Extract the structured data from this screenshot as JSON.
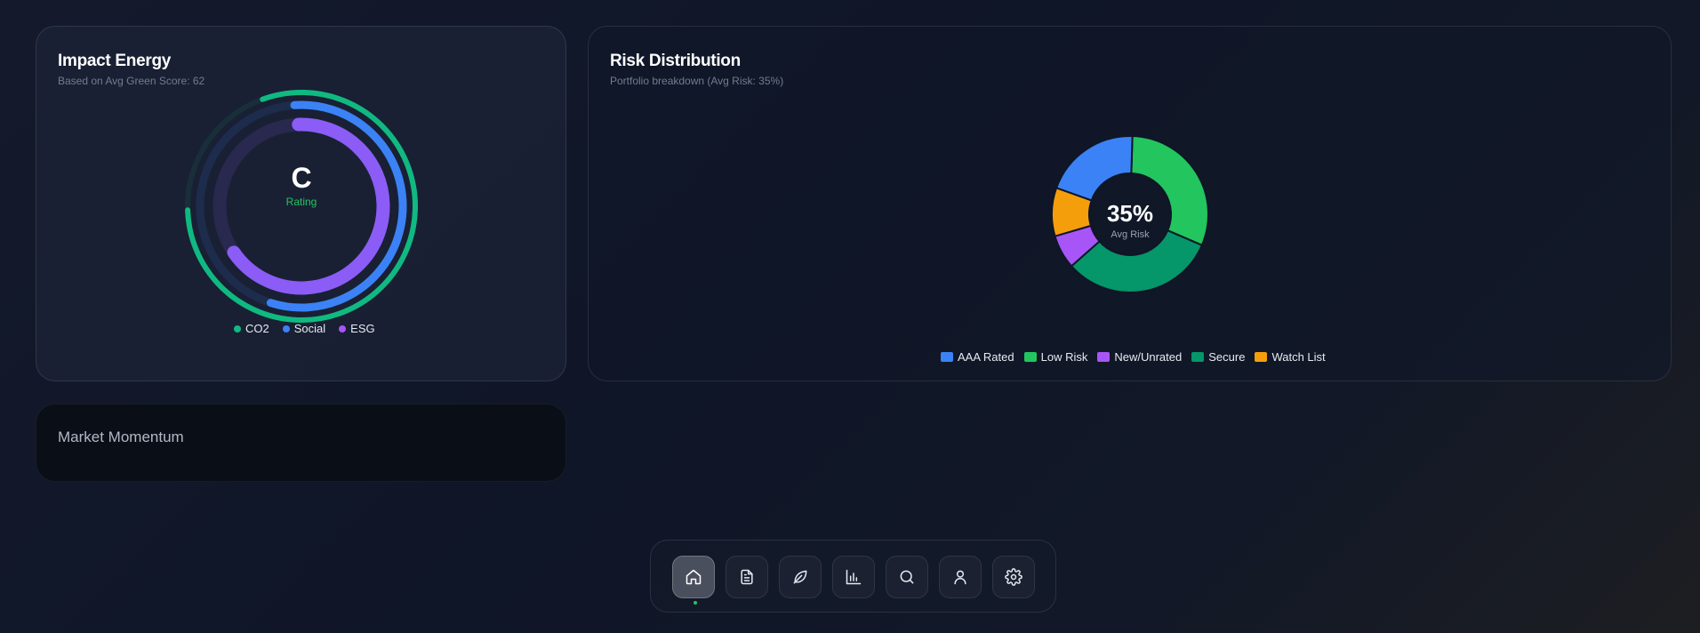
{
  "impact": {
    "title": "Impact Energy",
    "subtitle": "Based on Avg Green Score: 62",
    "center_value": "C",
    "center_label": "Rating",
    "legend": [
      {
        "label": "CO2",
        "color": "#10b981"
      },
      {
        "label": "Social",
        "color": "#3b82f6"
      },
      {
        "label": "ESG",
        "color": "#a855f7"
      }
    ],
    "chart_data": {
      "type": "radial-bar",
      "series": [
        {
          "name": "CO2",
          "fraction": 0.8,
          "color": "#10b981"
        },
        {
          "name": "Social",
          "fraction": 0.56,
          "color": "#3b82f6"
        },
        {
          "name": "ESG",
          "fraction": 0.66,
          "color": "#8b5cf6"
        }
      ]
    }
  },
  "risk": {
    "title": "Risk Distribution",
    "subtitle": "Portfolio breakdown (Avg Risk: 35%)",
    "center_value": "35%",
    "center_label": "Avg Risk",
    "legend": [
      {
        "label": "AAA Rated",
        "color": "#3b82f6"
      },
      {
        "label": "Low Risk",
        "color": "#22c55e"
      },
      {
        "label": "New/Unrated",
        "color": "#a855f7"
      },
      {
        "label": "Secure",
        "color": "#059669"
      },
      {
        "label": "Watch List",
        "color": "#f59e0b"
      }
    ],
    "chart_data": {
      "type": "pie",
      "donut": true,
      "slices": [
        {
          "label": "Low Risk",
          "value": 31,
          "color": "#22c55e"
        },
        {
          "label": "Secure",
          "value": 32,
          "color": "#059669"
        },
        {
          "label": "New/Unrated",
          "value": 7,
          "color": "#a855f7"
        },
        {
          "label": "Watch List",
          "value": 10,
          "color": "#f59e0b"
        },
        {
          "label": "AAA Rated",
          "value": 20,
          "color": "#3b82f6"
        }
      ],
      "legend_position": "bottom"
    }
  },
  "market": {
    "title": "Market Momentum"
  },
  "dock": {
    "items": [
      {
        "icon": "home-icon",
        "active": true
      },
      {
        "icon": "document-icon",
        "active": false
      },
      {
        "icon": "leaf-icon",
        "active": false
      },
      {
        "icon": "bar-chart-icon",
        "active": false
      },
      {
        "icon": "search-icon",
        "active": false
      },
      {
        "icon": "user-icon",
        "active": false
      },
      {
        "icon": "settings-icon",
        "active": false
      }
    ],
    "active_indicator_color": "#22c55e"
  }
}
